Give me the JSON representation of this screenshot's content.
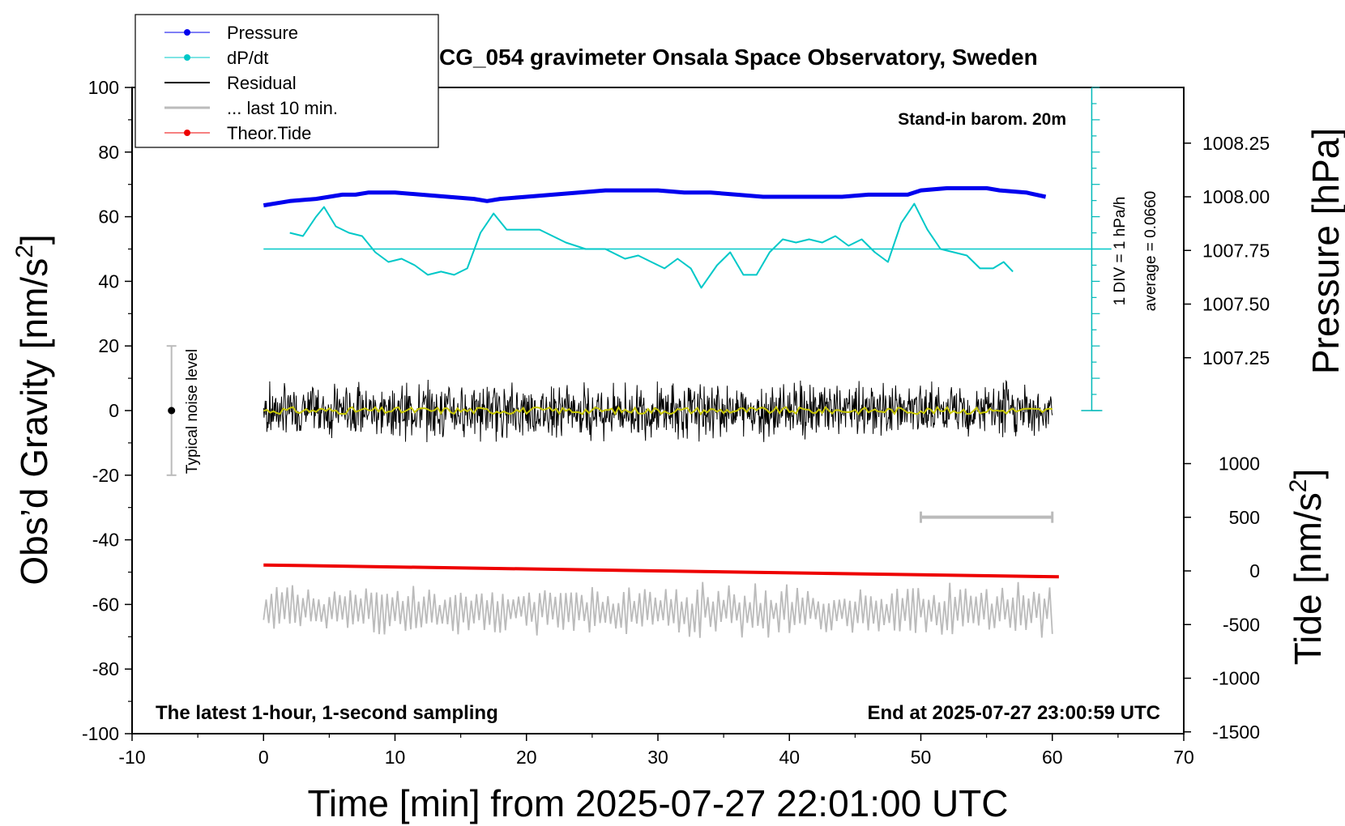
{
  "chart_data": {
    "type": "line",
    "title": "SCG_054 gravimeter Onsala Space Observatory, Sweden",
    "xlabel": "Time [min] from 2025-07-27 22:01:00 UTC",
    "ylabel_left": "Obs'd Gravity [nm/s2]",
    "ylabel_left_pre": "Obs’d Gravity [nm/s",
    "ylabel_left_sup": "2",
    "ylabel_left_post": "]",
    "ylabel_right_pressure": "Pressure [hPa]",
    "ylabel_right_tide": "Tide [nm/s2]",
    "ylabel_right_tide_pre": "Tide [nm/s",
    "ylabel_right_tide_sup": "2",
    "ylabel_right_tide_post": "]",
    "xlim": [
      -10,
      70
    ],
    "ylim_left": [
      -100,
      100
    ],
    "pressure_ticks": [
      "1008.25",
      "1008.00",
      "1007.75",
      "1007.50",
      "1007.25"
    ],
    "pressure_tick_values": [
      1008.25,
      1008.0,
      1007.75,
      1007.5,
      1007.25
    ],
    "tide_ticks": [
      "1000",
      "500",
      "0",
      "-500",
      "-1000",
      "-1500"
    ],
    "tide_tick_values": [
      1000,
      500,
      0,
      -500,
      -1000,
      -1500
    ],
    "x_ticks": [
      "-10",
      "0",
      "10",
      "20",
      "30",
      "40",
      "50",
      "60",
      "70"
    ],
    "y_ticks": [
      "100",
      "80",
      "60",
      "40",
      "20",
      "0",
      "-20",
      "-40",
      "-60",
      "-80",
      "-100"
    ],
    "annotations": {
      "barometer": "Stand-in barom. 20m",
      "div_scale": "1 DIV = 1 hPa/h",
      "average": "average = 0.0660",
      "noise_level": "Typical noise level",
      "bottom_left": "The latest 1-hour, 1-second sampling",
      "bottom_right": "End at 2025-07-27 23:00:59 UTC"
    },
    "legend": {
      "placement": "top-left",
      "entries": [
        "Pressure",
        "dP/dt",
        "Residual",
        "... last 10 min.",
        "Theor.Tide"
      ]
    },
    "series": [
      {
        "name": "Pressure",
        "color": "#0000ee",
        "axis": "pressure",
        "x": [
          0,
          2,
          4,
          5,
          6,
          7,
          8,
          9,
          10,
          12,
          14,
          16,
          17,
          18,
          20,
          22,
          24,
          26,
          28,
          30,
          32,
          34,
          36,
          38,
          40,
          42,
          44,
          46,
          48,
          49,
          50,
          52,
          54,
          55,
          56,
          58,
          59.5
        ],
        "y": [
          1007.96,
          1007.98,
          1007.99,
          1008.0,
          1008.01,
          1008.01,
          1008.02,
          1008.02,
          1008.02,
          1008.01,
          1008.0,
          1007.99,
          1007.98,
          1007.99,
          1008.0,
          1008.01,
          1008.02,
          1008.03,
          1008.03,
          1008.03,
          1008.02,
          1008.02,
          1008.01,
          1008.0,
          1008.0,
          1008.0,
          1008.0,
          1008.01,
          1008.01,
          1008.01,
          1008.03,
          1008.04,
          1008.04,
          1008.04,
          1008.03,
          1008.02,
          1008.0
        ]
      },
      {
        "name": "dP/dt",
        "color": "#00c8c8",
        "axis": "left",
        "x": [
          2,
          3,
          4,
          4.6,
          5.5,
          6.5,
          7.5,
          8.5,
          9.5,
          10.5,
          11.5,
          12.5,
          13.5,
          14.5,
          15.5,
          16.5,
          17.5,
          18.5,
          19.5,
          21,
          23,
          24.5,
          26,
          27.5,
          28.5,
          29.5,
          30.5,
          31.5,
          32.5,
          33.3,
          34.5,
          35.5,
          36.5,
          37.5,
          38.5,
          39.5,
          40.5,
          41.5,
          42.5,
          43.5,
          44.5,
          45.5,
          46.5,
          47.5,
          48.5,
          49.5,
          50.5,
          51.5,
          52.5,
          53.5,
          54.5,
          55.5,
          56.3,
          57
        ],
        "y": [
          55,
          54,
          60,
          63,
          57,
          55,
          54,
          49,
          46,
          47,
          45,
          42,
          43,
          42,
          44,
          55,
          61,
          56,
          56,
          56,
          52,
          50,
          50,
          47,
          48,
          46,
          44,
          47,
          44,
          38,
          45,
          49,
          42,
          42,
          49,
          53,
          52,
          53,
          52,
          54,
          51,
          53,
          49,
          46,
          58,
          64,
          56,
          50,
          49,
          48,
          44,
          44,
          46,
          43
        ]
      },
      {
        "name": "Residual",
        "color": "#000000",
        "axis": "left",
        "x": [
          0,
          60
        ],
        "y": [
          0,
          0
        ],
        "spread": 10
      },
      {
        "name": "... last 10 min.",
        "color": "#bbbbbb",
        "axis": "left",
        "x": [
          0,
          60
        ],
        "y": [
          -62,
          -62
        ],
        "spread": 9
      },
      {
        "name": "Theor.Tide",
        "color": "#ee0000",
        "axis": "tide",
        "x": [
          0,
          60.5
        ],
        "y": [
          55,
          -55
        ]
      }
    ],
    "reference_line": {
      "name": "dP/dt zero",
      "y": 50,
      "x": [
        0,
        64.5
      ]
    },
    "noise_bar": {
      "x": -7,
      "y": [
        -20,
        20
      ]
    },
    "last10_bar": {
      "x": [
        50,
        60
      ],
      "y": -33
    },
    "grid": false
  }
}
